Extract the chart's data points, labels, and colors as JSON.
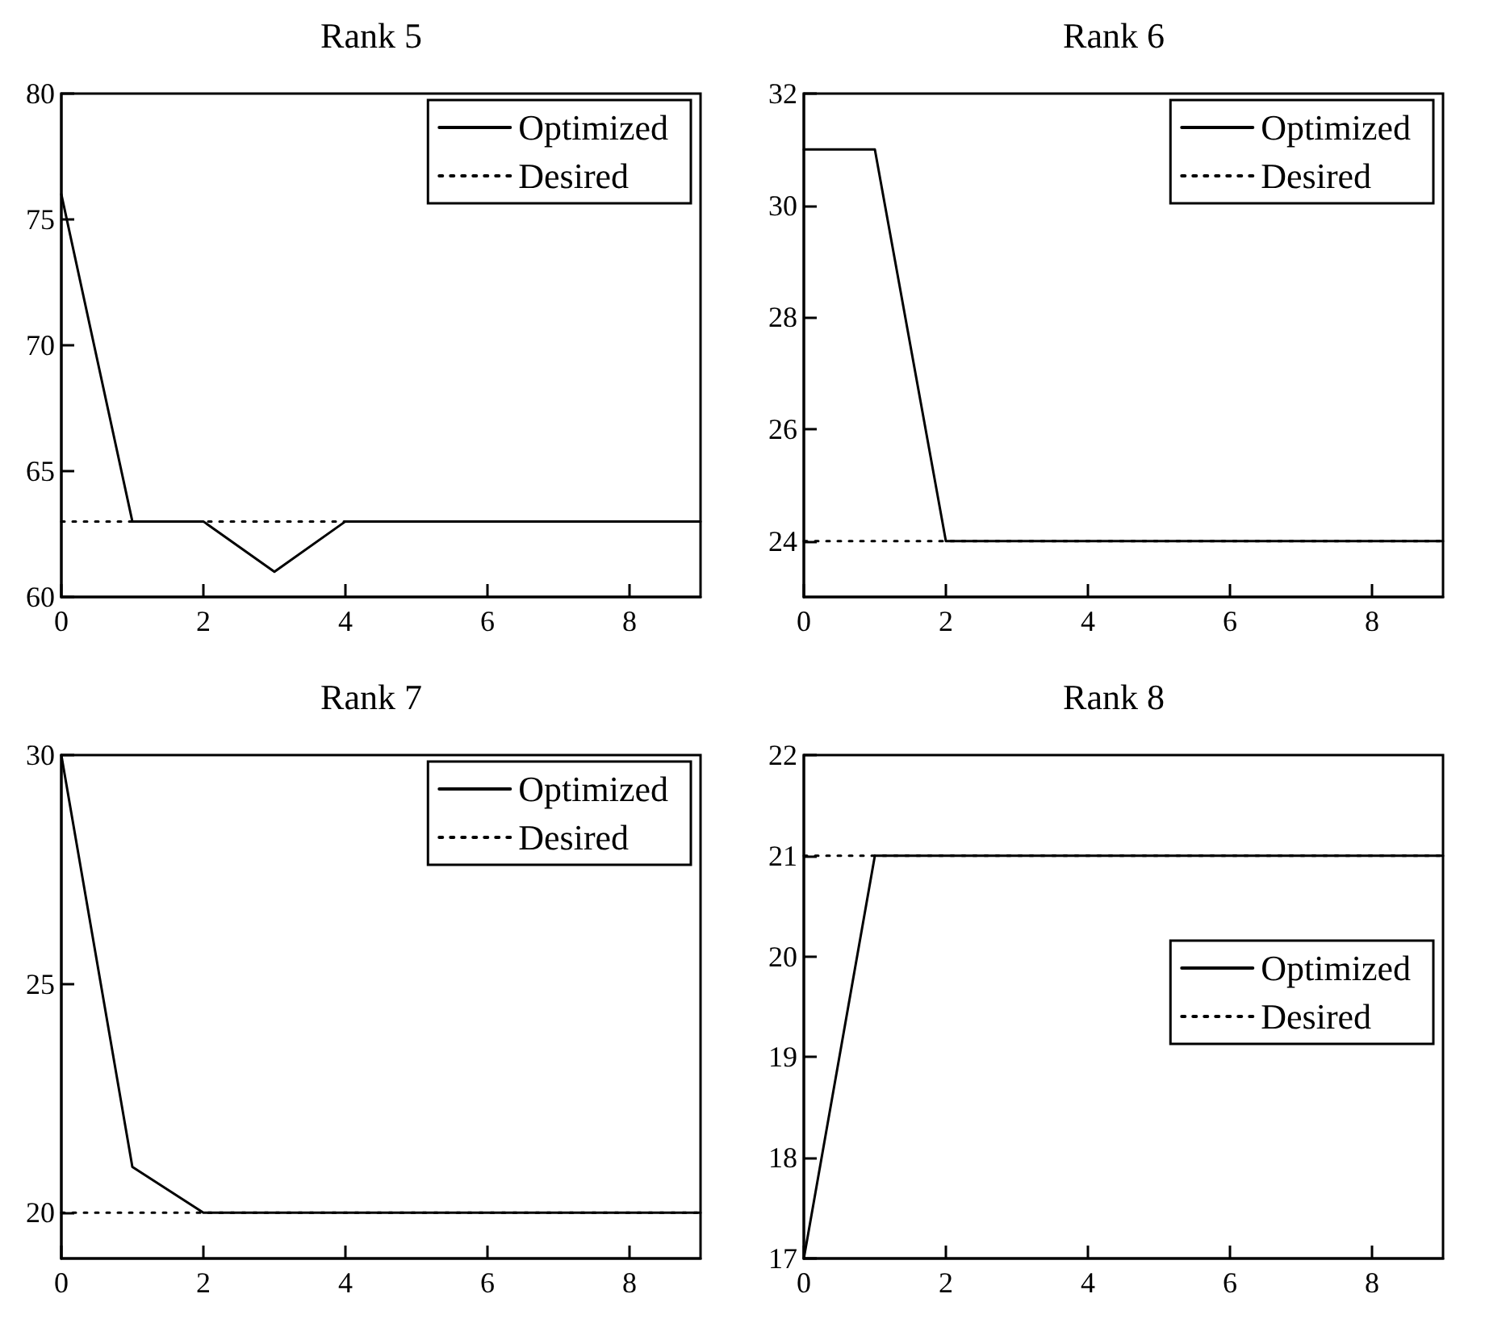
{
  "chart_data": [
    {
      "type": "line",
      "title": "Rank 5",
      "x": [
        0,
        1,
        2,
        3,
        4,
        5,
        6,
        7,
        8,
        9
      ],
      "xlim": [
        0,
        9
      ],
      "xticks": [
        0,
        2,
        4,
        6,
        8
      ],
      "ylim": [
        60,
        80
      ],
      "yticks": [
        60,
        65,
        70,
        75,
        80
      ],
      "grid": false,
      "legend": "top right",
      "marker": "none",
      "series": [
        {
          "name": "Optimized",
          "color": "#000000",
          "line_style": "solid",
          "values": [
            76,
            63,
            63,
            61,
            63,
            63,
            63,
            63,
            63,
            63
          ]
        },
        {
          "name": "Desired",
          "color": "#000000",
          "line_style": "dotted",
          "values": [
            63,
            63,
            63,
            63,
            63,
            63,
            63,
            63,
            63,
            63
          ]
        }
      ]
    },
    {
      "type": "line",
      "title": "Rank 6",
      "x": [
        0,
        1,
        2,
        3,
        4,
        5,
        6,
        7,
        8,
        9
      ],
      "xlim": [
        0,
        9
      ],
      "xticks": [
        0,
        2,
        4,
        6,
        8
      ],
      "ylim": [
        23,
        32
      ],
      "yticks": [
        24,
        26,
        28,
        30,
        32
      ],
      "grid": false,
      "legend": "top right",
      "marker": "none",
      "series": [
        {
          "name": "Optimized",
          "color": "#000000",
          "line_style": "solid",
          "values": [
            31,
            31,
            24,
            24,
            24,
            24,
            24,
            24,
            24,
            24
          ]
        },
        {
          "name": "Desired",
          "color": "#000000",
          "line_style": "dotted",
          "values": [
            24,
            24,
            24,
            24,
            24,
            24,
            24,
            24,
            24,
            24
          ]
        }
      ]
    },
    {
      "type": "line",
      "title": "Rank 7",
      "x": [
        0,
        1,
        2,
        3,
        4,
        5,
        6,
        7,
        8,
        9
      ],
      "xlim": [
        0,
        9
      ],
      "xticks": [
        0,
        2,
        4,
        6,
        8
      ],
      "ylim": [
        19,
        30
      ],
      "yticks": [
        20,
        25,
        30
      ],
      "grid": false,
      "legend": "top right",
      "marker": "none",
      "series": [
        {
          "name": "Optimized",
          "color": "#000000",
          "line_style": "solid",
          "values": [
            30,
            21,
            20,
            20,
            20,
            20,
            20,
            20,
            20,
            20
          ]
        },
        {
          "name": "Desired",
          "color": "#000000",
          "line_style": "dotted",
          "values": [
            20,
            20,
            20,
            20,
            20,
            20,
            20,
            20,
            20,
            20
          ]
        }
      ]
    },
    {
      "type": "line",
      "title": "Rank 8",
      "x": [
        0,
        1,
        2,
        3,
        4,
        5,
        6,
        7,
        8,
        9
      ],
      "xlim": [
        0,
        9
      ],
      "xticks": [
        0,
        2,
        4,
        6,
        8
      ],
      "ylim": [
        17,
        22
      ],
      "yticks": [
        17,
        18,
        19,
        20,
        21,
        22
      ],
      "grid": false,
      "legend": "right",
      "marker": "none",
      "series": [
        {
          "name": "Optimized",
          "color": "#000000",
          "line_style": "solid",
          "values": [
            17,
            21,
            21,
            21,
            21,
            21,
            21,
            21,
            21,
            21
          ]
        },
        {
          "name": "Desired",
          "color": "#000000",
          "line_style": "dotted",
          "values": [
            21,
            21,
            21,
            21,
            21,
            21,
            21,
            21,
            21,
            21
          ]
        }
      ]
    }
  ]
}
